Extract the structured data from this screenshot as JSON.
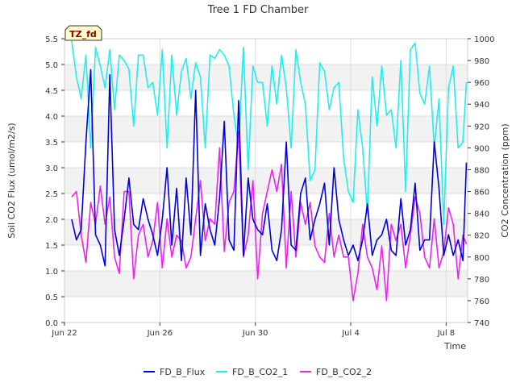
{
  "chart_data": {
    "type": "line",
    "title": "Tree 1 FD Chamber",
    "badge": "TZ_fd",
    "xlabel": "Time",
    "ylabel_left": "Soil CO2 Flux (umol/m2/s)",
    "ylabel_right": "CO2 Concentration (ppm)",
    "x_unit": "days since Jun 22",
    "xlim": [
      0,
      16.9
    ],
    "ylim_left": [
      0,
      5.5
    ],
    "ylim_right": [
      740,
      1000
    ],
    "x_ticks": [
      {
        "label": "Jun 22",
        "value": 0
      },
      {
        "label": "Jun 26",
        "value": 4
      },
      {
        "label": "Jun 30",
        "value": 8
      },
      {
        "label": "Jul 4",
        "value": 12
      },
      {
        "label": "Jul 8",
        "value": 16
      }
    ],
    "y_ticks_left": [
      0.0,
      0.5,
      1.0,
      1.5,
      2.0,
      2.5,
      3.0,
      3.5,
      4.0,
      4.5,
      5.0,
      5.5
    ],
    "y_ticks_left_labels": [
      "0.0",
      "0.5",
      "1.0",
      "1.5",
      "2.0",
      "2.5",
      "3.0",
      "3.5",
      "4.0",
      "4.5",
      "5.0",
      "5.5"
    ],
    "y_ticks_right": [
      740,
      760,
      780,
      800,
      820,
      840,
      860,
      880,
      900,
      920,
      940,
      960,
      980,
      1000
    ],
    "y_ticks_right_labels": [
      "740",
      "760",
      "780",
      "800",
      "820",
      "840",
      "860",
      "880",
      "900",
      "920",
      "940",
      "960",
      "980",
      "1000"
    ],
    "legend_position": "bottom",
    "series": [
      {
        "name": "FD_B_Flux",
        "axis": "left",
        "color": "#0000dd",
        "x": [
          0.3,
          0.5,
          0.7,
          0.9,
          1.1,
          1.3,
          1.5,
          1.7,
          1.9,
          2.1,
          2.3,
          2.5,
          2.7,
          2.9,
          3.1,
          3.3,
          3.5,
          3.7,
          3.9,
          4.1,
          4.3,
          4.5,
          4.7,
          4.9,
          5.1,
          5.3,
          5.5,
          5.7,
          5.9,
          6.1,
          6.3,
          6.5,
          6.7,
          6.9,
          7.1,
          7.3,
          7.5,
          7.7,
          7.9,
          8.1,
          8.3,
          8.5,
          8.7,
          8.9,
          9.1,
          9.3,
          9.5,
          9.7,
          9.9,
          10.1,
          10.3,
          10.5,
          10.7,
          10.9,
          11.1,
          11.3,
          11.5,
          11.7,
          11.9,
          12.1,
          12.3,
          12.5,
          12.7,
          12.9,
          13.1,
          13.3,
          13.5,
          13.7,
          13.9,
          14.1,
          14.3,
          14.5,
          14.7,
          14.9,
          15.1,
          15.3,
          15.5,
          15.7,
          15.9,
          16.1,
          16.3,
          16.5,
          16.7,
          16.85
        ],
        "y": [
          2.0,
          1.6,
          1.8,
          3.5,
          4.9,
          1.7,
          1.5,
          1.1,
          4.8,
          1.8,
          1.3,
          2.0,
          2.8,
          1.9,
          1.8,
          2.4,
          2.0,
          1.7,
          1.3,
          2.0,
          3.0,
          1.5,
          2.6,
          1.2,
          2.8,
          1.7,
          4.5,
          1.3,
          2.3,
          1.8,
          1.5,
          2.4,
          3.9,
          1.6,
          1.4,
          4.3,
          1.3,
          2.8,
          2.0,
          1.8,
          1.7,
          2.3,
          1.4,
          1.2,
          1.8,
          3.5,
          1.5,
          1.4,
          2.5,
          2.8,
          1.6,
          2.0,
          2.3,
          2.7,
          1.5,
          3.0,
          2.0,
          1.6,
          1.3,
          1.5,
          1.2,
          1.6,
          2.3,
          1.3,
          1.6,
          1.7,
          2.0,
          1.4,
          1.3,
          2.4,
          1.5,
          1.8,
          2.7,
          1.4,
          1.6,
          1.6,
          3.5,
          2.6,
          1.3,
          1.7,
          1.3,
          1.6,
          1.2,
          3.1
        ]
      },
      {
        "name": "FD_B_CO2_1",
        "axis": "right",
        "color": "#22eeee",
        "x": [
          0.3,
          0.5,
          0.7,
          0.9,
          1.1,
          1.3,
          1.5,
          1.7,
          1.9,
          2.1,
          2.3,
          2.5,
          2.7,
          2.9,
          3.1,
          3.3,
          3.5,
          3.7,
          3.9,
          4.1,
          4.3,
          4.5,
          4.7,
          4.9,
          5.1,
          5.3,
          5.5,
          5.7,
          5.9,
          6.1,
          6.3,
          6.5,
          6.7,
          6.9,
          7.1,
          7.3,
          7.5,
          7.7,
          7.9,
          8.1,
          8.3,
          8.5,
          8.7,
          8.9,
          9.1,
          9.3,
          9.5,
          9.7,
          9.9,
          10.1,
          10.3,
          10.5,
          10.7,
          10.9,
          11.1,
          11.3,
          11.5,
          11.7,
          11.9,
          12.1,
          12.3,
          12.5,
          12.7,
          12.9,
          13.1,
          13.3,
          13.5,
          13.7,
          13.9,
          14.1,
          14.3,
          14.5,
          14.7,
          14.9,
          15.1,
          15.3,
          15.5,
          15.7,
          15.9,
          16.1,
          16.3,
          16.5,
          16.7,
          16.85
        ],
        "y": [
          998,
          965,
          945,
          985,
          900,
          992,
          975,
          955,
          990,
          935,
          985,
          980,
          972,
          920,
          985,
          985,
          955,
          960,
          930,
          990,
          900,
          985,
          930,
          970,
          982,
          945,
          978,
          965,
          900,
          985,
          982,
          990,
          985,
          975,
          930,
          900,
          992,
          880,
          975,
          960,
          960,
          920,
          975,
          940,
          985,
          955,
          900,
          990,
          960,
          940,
          870,
          880,
          978,
          970,
          935,
          955,
          960,
          890,
          860,
          850,
          935,
          900,
          840,
          965,
          920,
          975,
          930,
          935,
          900,
          980,
          860,
          990,
          996,
          950,
          940,
          975,
          900,
          945,
          830,
          955,
          975,
          900,
          905,
          960
        ]
      },
      {
        "name": "FD_B_CO2_2",
        "axis": "right",
        "color": "#ee22ee",
        "x": [
          0.3,
          0.5,
          0.7,
          0.9,
          1.1,
          1.3,
          1.5,
          1.7,
          1.9,
          2.1,
          2.3,
          2.5,
          2.7,
          2.9,
          3.1,
          3.3,
          3.5,
          3.7,
          3.9,
          4.1,
          4.3,
          4.5,
          4.7,
          4.9,
          5.1,
          5.3,
          5.5,
          5.7,
          5.9,
          6.1,
          6.3,
          6.5,
          6.7,
          6.9,
          7.1,
          7.3,
          7.5,
          7.7,
          7.9,
          8.1,
          8.3,
          8.5,
          8.7,
          8.9,
          9.1,
          9.3,
          9.5,
          9.7,
          9.9,
          10.1,
          10.3,
          10.5,
          10.7,
          10.9,
          11.1,
          11.3,
          11.5,
          11.7,
          11.9,
          12.1,
          12.3,
          12.5,
          12.7,
          12.9,
          13.1,
          13.3,
          13.5,
          13.7,
          13.9,
          14.1,
          14.3,
          14.5,
          14.7,
          14.9,
          15.1,
          15.3,
          15.5,
          15.7,
          15.9,
          16.1,
          16.3,
          16.5,
          16.7,
          16.85
        ],
        "y": [
          855,
          860,
          820,
          795,
          850,
          830,
          865,
          830,
          855,
          800,
          785,
          860,
          860,
          780,
          820,
          830,
          800,
          815,
          850,
          790,
          835,
          800,
          820,
          815,
          790,
          800,
          835,
          870,
          815,
          835,
          830,
          900,
          805,
          850,
          860,
          915,
          800,
          820,
          870,
          780,
          840,
          860,
          880,
          860,
          885,
          790,
          860,
          800,
          850,
          830,
          850,
          810,
          800,
          795,
          840,
          800,
          820,
          800,
          800,
          760,
          785,
          830,
          800,
          790,
          770,
          810,
          760,
          830,
          815,
          830,
          790,
          820,
          855,
          840,
          800,
          790,
          835,
          790,
          805,
          845,
          830,
          780,
          820,
          812
        ]
      }
    ]
  }
}
